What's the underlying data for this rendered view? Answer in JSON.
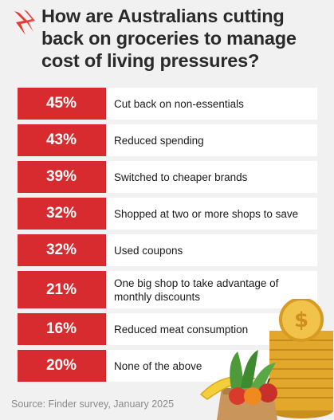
{
  "header": {
    "title": "How are Australians cutting back on groceries to manage cost of living pressures?"
  },
  "colors": {
    "bar": "#d72b2f",
    "background": "#f1f1f1",
    "label_bg": "#ffffff"
  },
  "chart_data": {
    "type": "table",
    "title": "How are Australians cutting back on groceries to manage cost of living pressures?",
    "categories": [
      "Cut back on non-essentials",
      "Reduced spending",
      "Switched to cheaper brands",
      "Shopped at two or more shops to save",
      "Used coupons",
      "One big shop to take advantage of monthly discounts",
      "Reduced meat consumption",
      "None of the above"
    ],
    "values": [
      45,
      43,
      39,
      32,
      32,
      21,
      16,
      20
    ],
    "value_labels": [
      "45%",
      "43%",
      "39%",
      "32%",
      "32%",
      "21%",
      "16%",
      "20%"
    ],
    "unit": "%"
  },
  "rows": [
    {
      "pct": "45%",
      "label": "Cut back on non-essentials"
    },
    {
      "pct": "43%",
      "label": "Reduced spending"
    },
    {
      "pct": "39%",
      "label": "Switched to cheaper brands"
    },
    {
      "pct": "32%",
      "label": "Shopped at two or more shops to save"
    },
    {
      "pct": "32%",
      "label": "Used coupons"
    },
    {
      "pct": "21%",
      "label": "One big shop to take advantage of monthly discounts"
    },
    {
      "pct": "16%",
      "label": "Reduced meat consumption"
    },
    {
      "pct": "20%",
      "label": "None of the above"
    }
  ],
  "footer": {
    "source": "Source: Finder survey, January 2025"
  },
  "icons": {
    "logo": "sbs-logo-icon",
    "illustration": "groceries-coins-illustration"
  }
}
